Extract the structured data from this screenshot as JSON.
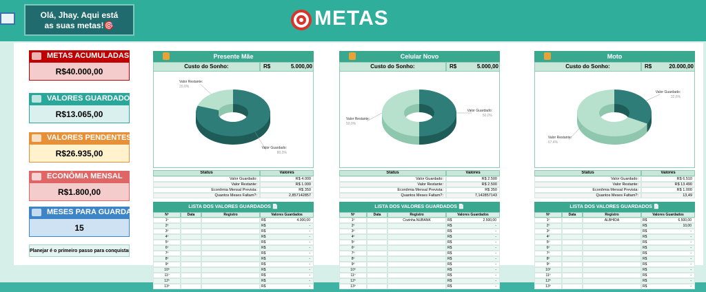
{
  "header": {
    "greeting": "Olá, Jhay. Aqui está as suas metas!🎯",
    "title": "METAS"
  },
  "sidebar": {
    "cards": [
      {
        "label": "METAS ACUMULADAS",
        "value": "R$40.000,00"
      },
      {
        "label": "VALORES GUARDADOS",
        "value": "R$13.065,00"
      },
      {
        "label": "VALORES PENDENTES",
        "value": "R$26.935,00"
      },
      {
        "label": "ECONÔMIA MENSAL",
        "value": "R$1.800,00"
      },
      {
        "label": "MESES PARA GUARDAR",
        "value": "15"
      }
    ],
    "footer": "Planejar é o primeiro passo para conquistar."
  },
  "goals": [
    {
      "name": "Presente Mãe",
      "cost_label": "Custo do Sonho:",
      "currency": "R$",
      "cost": "5.000,00",
      "donut": {
        "labels": [
          "Valor Guardado:",
          "Valor Restante:"
        ],
        "values": [
          80,
          20
        ],
        "value_labels": [
          "80,0%",
          "20,0%"
        ]
      },
      "status": {
        "headers": [
          "Status",
          "Valores"
        ],
        "rows": [
          [
            "Valor Guardado:",
            "R$ 4.000"
          ],
          [
            "Valor Restante:",
            "R$ 1.000"
          ],
          [
            "Econômia Mensal Prevista:",
            "R$ 350"
          ],
          [
            "Quantos Meses Faltam?:",
            "2,857142857"
          ]
        ]
      },
      "list": {
        "title": "LISTA DOS VALORES GUARDADOS 📄",
        "headers": [
          "Nº",
          "Data",
          "Registro",
          "Valores Guardados"
        ],
        "rows": [
          {
            "n": "1º",
            "currency": "R$",
            "amount": "4.000,00"
          },
          {
            "n": "2º",
            "currency": "R$",
            "amount": "-"
          },
          {
            "n": "3º",
            "currency": "R$",
            "amount": "-"
          },
          {
            "n": "4º",
            "currency": "R$",
            "amount": "-"
          },
          {
            "n": "5º",
            "currency": "R$",
            "amount": "-"
          },
          {
            "n": "6º",
            "currency": "R$",
            "amount": "-"
          },
          {
            "n": "7º",
            "currency": "R$",
            "amount": "-"
          },
          {
            "n": "8º",
            "currency": "R$",
            "amount": "-"
          },
          {
            "n": "9º",
            "currency": "R$",
            "amount": "-"
          },
          {
            "n": "10º",
            "currency": "R$",
            "amount": "-"
          },
          {
            "n": "11º",
            "currency": "R$",
            "amount": "-"
          },
          {
            "n": "12º",
            "currency": "R$",
            "amount": "-"
          },
          {
            "n": "13º",
            "currency": "R$",
            "amount": "-"
          }
        ]
      }
    },
    {
      "name": "Celular Novo",
      "cost_label": "Custo do Sonho:",
      "currency": "R$",
      "cost": "5.000,00",
      "donut": {
        "labels": [
          "Valor Guardado:",
          "Valor Restante:"
        ],
        "values": [
          50,
          50
        ],
        "value_labels": [
          "50,0%",
          "50,0%"
        ]
      },
      "status": {
        "headers": [
          "Status",
          "Valores"
        ],
        "rows": [
          [
            "Valor Guardado:",
            "R$ 2.500"
          ],
          [
            "Valor Restante:",
            "R$ 2.500"
          ],
          [
            "Econômia Mensal Prevista:",
            "R$ 350"
          ],
          [
            "Quantos Meses Faltam?:",
            "7,142857143"
          ]
        ]
      },
      "list": {
        "title": "LISTA DOS VALORES GUARDADOS 📄",
        "headers": [
          "Nº",
          "Data",
          "Registro",
          "Valores Guardados"
        ],
        "rows": [
          {
            "n": "1º",
            "registro": "Cozinha NUBANK",
            "currency": "R$",
            "amount": "2.500,00"
          },
          {
            "n": "2º",
            "currency": "R$",
            "amount": "-"
          },
          {
            "n": "3º",
            "currency": "R$",
            "amount": "-"
          },
          {
            "n": "4º",
            "currency": "R$",
            "amount": "-"
          },
          {
            "n": "5º",
            "currency": "R$",
            "amount": "-"
          },
          {
            "n": "6º",
            "currency": "R$",
            "amount": "-"
          },
          {
            "n": "7º",
            "currency": "R$",
            "amount": "-"
          },
          {
            "n": "8º",
            "currency": "R$",
            "amount": "-"
          },
          {
            "n": "9º",
            "currency": "R$",
            "amount": "-"
          },
          {
            "n": "10º",
            "currency": "R$",
            "amount": "-"
          },
          {
            "n": "11º",
            "currency": "R$",
            "amount": "-"
          },
          {
            "n": "12º",
            "currency": "R$",
            "amount": "-"
          },
          {
            "n": "13º",
            "currency": "R$",
            "amount": "-"
          }
        ]
      }
    },
    {
      "name": "Moto",
      "cost_label": "Custo do Sonho:",
      "currency": "R$",
      "cost": "20.000,00",
      "donut": {
        "labels": [
          "Valor Guardado:",
          "Valor Restante:"
        ],
        "values": [
          32.6,
          67.4
        ],
        "value_labels": [
          "32,6%",
          "67,4%"
        ]
      },
      "status": {
        "headers": [
          "Status",
          "Valores"
        ],
        "rows": [
          [
            "Valor Guardado:",
            "R$ 6.510"
          ],
          [
            "Valor Restante:",
            "R$ 13.490"
          ],
          [
            "Econômia Mensal Prevista:",
            "R$ 1.000"
          ],
          [
            "Quantos Meses Faltam?:",
            "13,49"
          ]
        ]
      },
      "list": {
        "title": "LISTA DOS VALORES GUARDADOS 📄",
        "headers": [
          "Nº",
          "Data",
          "Registro",
          "Valores Guardados"
        ],
        "rows": [
          {
            "n": "1º",
            "registro": "ALBHIDA",
            "currency": "R$",
            "amount": "6.500,00"
          },
          {
            "n": "2º",
            "currency": "R$",
            "amount": "10,00"
          },
          {
            "n": "3º",
            "currency": "R$",
            "amount": "-"
          },
          {
            "n": "4º",
            "currency": "R$",
            "amount": "-"
          },
          {
            "n": "5º",
            "currency": "R$",
            "amount": "-"
          },
          {
            "n": "6º",
            "currency": "R$",
            "amount": "-"
          },
          {
            "n": "7º",
            "currency": "R$",
            "amount": "-"
          },
          {
            "n": "8º",
            "currency": "R$",
            "amount": "-"
          },
          {
            "n": "9º",
            "currency": "R$",
            "amount": "-"
          },
          {
            "n": "10º",
            "currency": "R$",
            "amount": "-"
          },
          {
            "n": "11º",
            "currency": "R$",
            "amount": "-"
          },
          {
            "n": "12º",
            "currency": "R$",
            "amount": "-"
          },
          {
            "n": "13º",
            "currency": "R$",
            "amount": "-"
          }
        ]
      }
    }
  ]
}
